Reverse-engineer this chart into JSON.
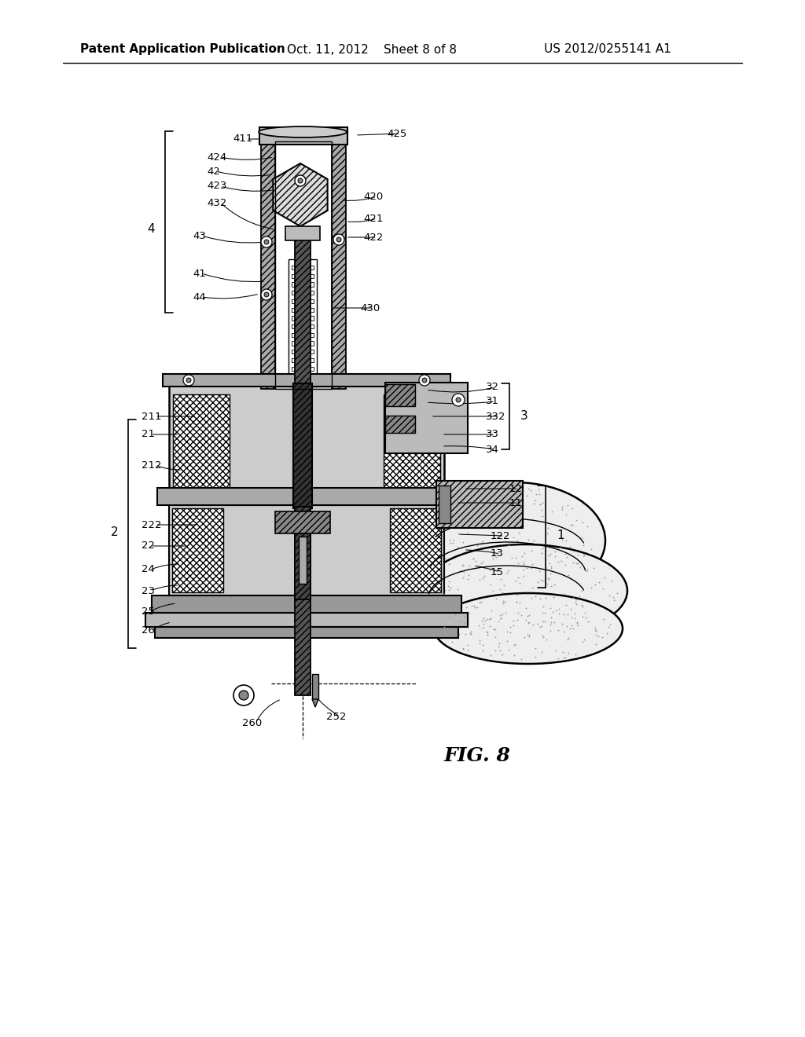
{
  "title": "Patent Application Publication",
  "date": "Oct. 11, 2012",
  "sheet": "Sheet 8 of 8",
  "patent_num": "US 2012/0255141 A1",
  "fig_label": "FIG. 8",
  "background_color": "#ffffff",
  "header_fontsize": 11,
  "fig_label_fontsize": 18,
  "label_fontsize": 9.5,
  "labels_left": [
    [
      "411",
      295,
      178
    ],
    [
      "424",
      263,
      200
    ],
    [
      "42",
      263,
      218
    ],
    [
      "423",
      263,
      237
    ],
    [
      "432",
      263,
      258
    ],
    [
      "43",
      245,
      300
    ],
    [
      "41",
      245,
      348
    ],
    [
      "44",
      245,
      378
    ]
  ],
  "labels_right_top": [
    [
      "425",
      490,
      168
    ],
    [
      "420",
      465,
      250
    ],
    [
      "421",
      465,
      278
    ],
    [
      "422",
      465,
      302
    ],
    [
      "430",
      458,
      392
    ]
  ],
  "labels_right_mid": [
    [
      "32",
      618,
      492
    ],
    [
      "31",
      618,
      510
    ],
    [
      "332",
      618,
      530
    ],
    [
      "33",
      618,
      553
    ],
    [
      "34",
      618,
      572
    ]
  ],
  "labels_left_mid": [
    [
      "211",
      180,
      530
    ],
    [
      "21",
      180,
      553
    ],
    [
      "212",
      180,
      592
    ]
  ],
  "labels_left_low": [
    [
      "222",
      180,
      668
    ],
    [
      "22",
      180,
      695
    ],
    [
      "24",
      180,
      725
    ],
    [
      "23",
      180,
      752
    ],
    [
      "25",
      180,
      778
    ],
    [
      "26",
      180,
      803
    ]
  ],
  "labels_right_low": [
    [
      "12",
      648,
      622
    ],
    [
      "11",
      648,
      640
    ],
    [
      "122",
      624,
      680
    ],
    [
      "13",
      624,
      705
    ],
    [
      "15",
      624,
      728
    ]
  ],
  "labels_bottom": [
    [
      "260",
      308,
      920
    ],
    [
      "252",
      415,
      912
    ]
  ]
}
